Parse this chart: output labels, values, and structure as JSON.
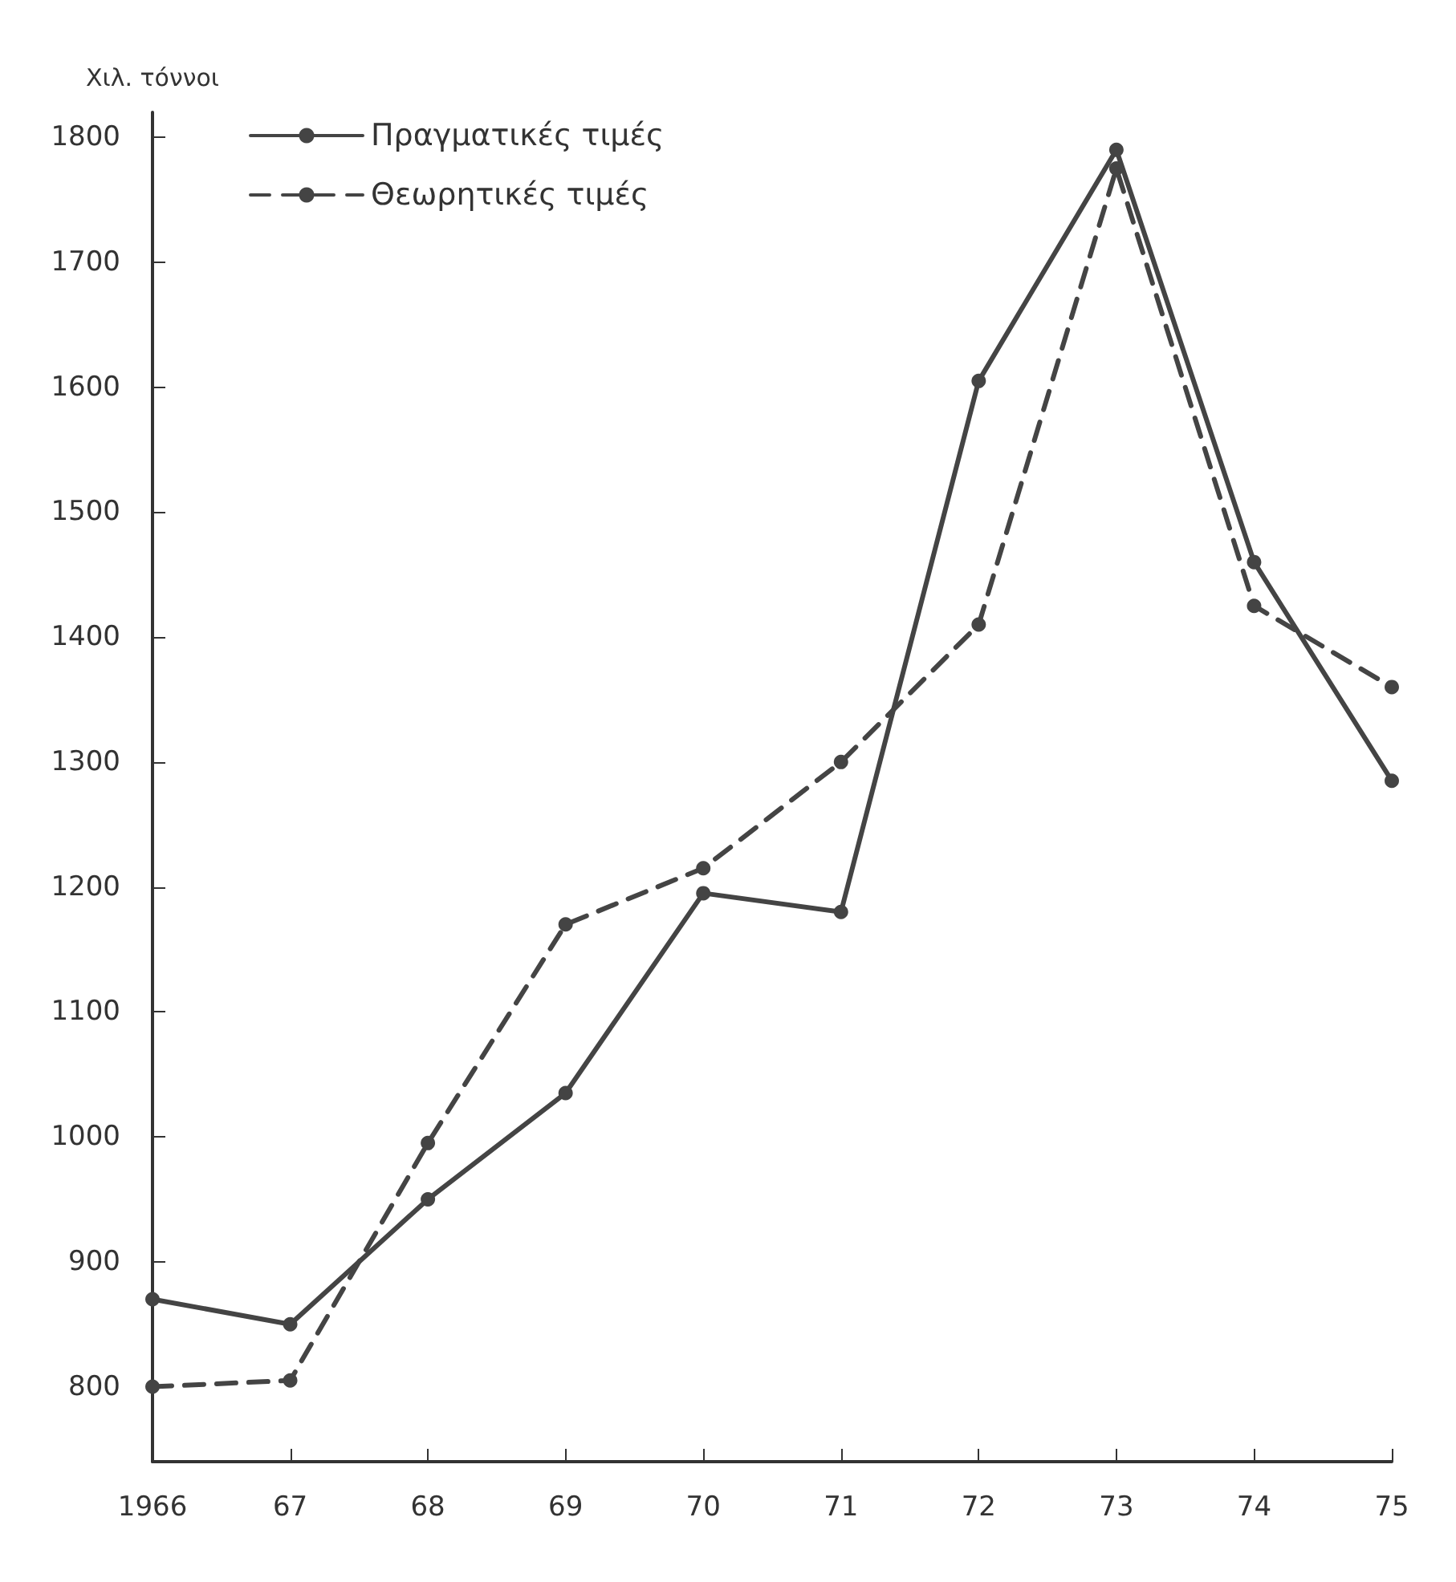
{
  "chart_data": {
    "type": "line",
    "ylabel": "Χιλ. τόννοι",
    "categories": [
      "1966",
      "67",
      "68",
      "69",
      "70",
      "71",
      "72",
      "73",
      "74",
      "75"
    ],
    "series": [
      {
        "name": "Πραγματικές τιμές",
        "color": "#444444",
        "line_style": "solid",
        "values": [
          870,
          850,
          950,
          1035,
          1195,
          1180,
          1605,
          1790,
          1460,
          1285
        ]
      },
      {
        "name": "Θεωρητικές τιμές",
        "color": "#444444",
        "line_style": "dashed",
        "values": [
          800,
          805,
          995,
          1170,
          1215,
          1300,
          1410,
          1775,
          1425,
          1360
        ]
      }
    ],
    "ylim": [
      740,
      1820
    ],
    "yticks": [
      800,
      900,
      1000,
      1100,
      1200,
      1300,
      1400,
      1500,
      1600,
      1700,
      1800
    ],
    "grid": false,
    "legend": "top left",
    "marker": "circle"
  }
}
